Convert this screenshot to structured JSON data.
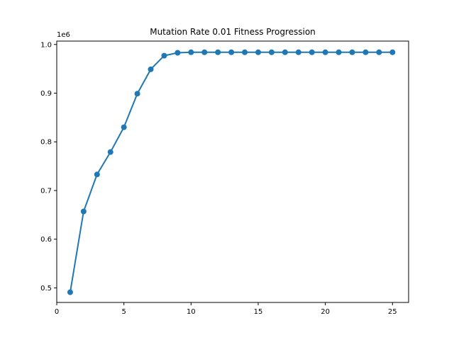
{
  "chart_data": {
    "type": "line",
    "title": "Mutation Rate 0.01 Fitness Progression",
    "xlabel": "",
    "ylabel": "",
    "y_offset_label": "1e6",
    "y_scale": 1000000,
    "xlim": [
      0,
      26.2
    ],
    "ylim": [
      470000,
      1007000
    ],
    "x_ticks": [
      0,
      5,
      10,
      15,
      20,
      25
    ],
    "y_ticks": [
      0.5,
      0.6,
      0.7,
      0.8,
      0.9,
      1.0
    ],
    "y_tick_labels": [
      "0.5",
      "0.6",
      "0.7",
      "0.8",
      "0.9",
      "1.0"
    ],
    "grid": false,
    "line_color": "#1f77b4",
    "marker": "circle",
    "series": [
      {
        "x": [
          1,
          2,
          3,
          4,
          5,
          6,
          7,
          8,
          9,
          10,
          11,
          12,
          13,
          14,
          15,
          16,
          17,
          18,
          19,
          20,
          21,
          22,
          23,
          24,
          25
        ],
        "y": [
          491000,
          657000,
          733000,
          779000,
          830000,
          899000,
          949000,
          977000,
          983000,
          984000,
          984000,
          984000,
          984000,
          984000,
          984000,
          984000,
          984000,
          984000,
          984000,
          984000,
          984000,
          984000,
          984000,
          984000,
          984000
        ]
      }
    ]
  }
}
